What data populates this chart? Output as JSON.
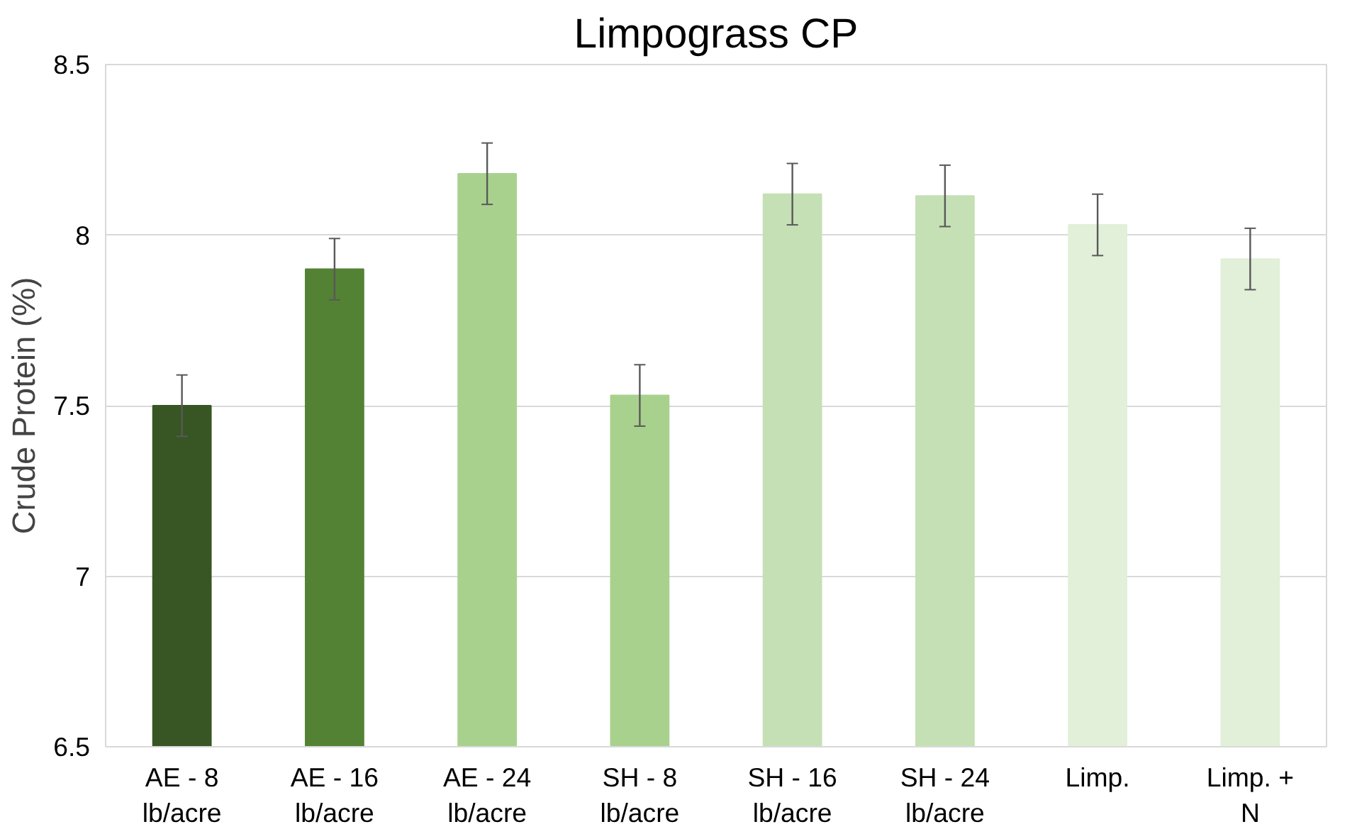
{
  "chart_data": {
    "type": "bar",
    "title": "Limpograss CP",
    "ylabel": "Crude Protein (%)",
    "categories": [
      "AE - 8\nlb/acre",
      "AE - 16\nlb/acre",
      "AE - 24\nlb/acre",
      "SH - 8\nlb/acre",
      "SH - 16\nlb/acre",
      "SH - 24\nlb/acre",
      "Limp.",
      "Limp. +\nN"
    ],
    "values": [
      7.5,
      7.9,
      8.18,
      7.53,
      8.12,
      8.115,
      8.03,
      7.93
    ],
    "colors": [
      "#375623",
      "#548235",
      "#a9d18e",
      "#a9d18e",
      "#c5e0b4",
      "#c5e0b4",
      "#e2efd9",
      "#e2efd9"
    ],
    "errors": [
      0.09,
      0.09,
      0.09,
      0.09,
      0.09,
      0.09,
      0.09,
      0.09
    ],
    "ylim": [
      6.5,
      8.5
    ],
    "yticks": [
      6.5,
      7,
      7.5,
      8,
      8.5
    ],
    "grid": "y"
  }
}
